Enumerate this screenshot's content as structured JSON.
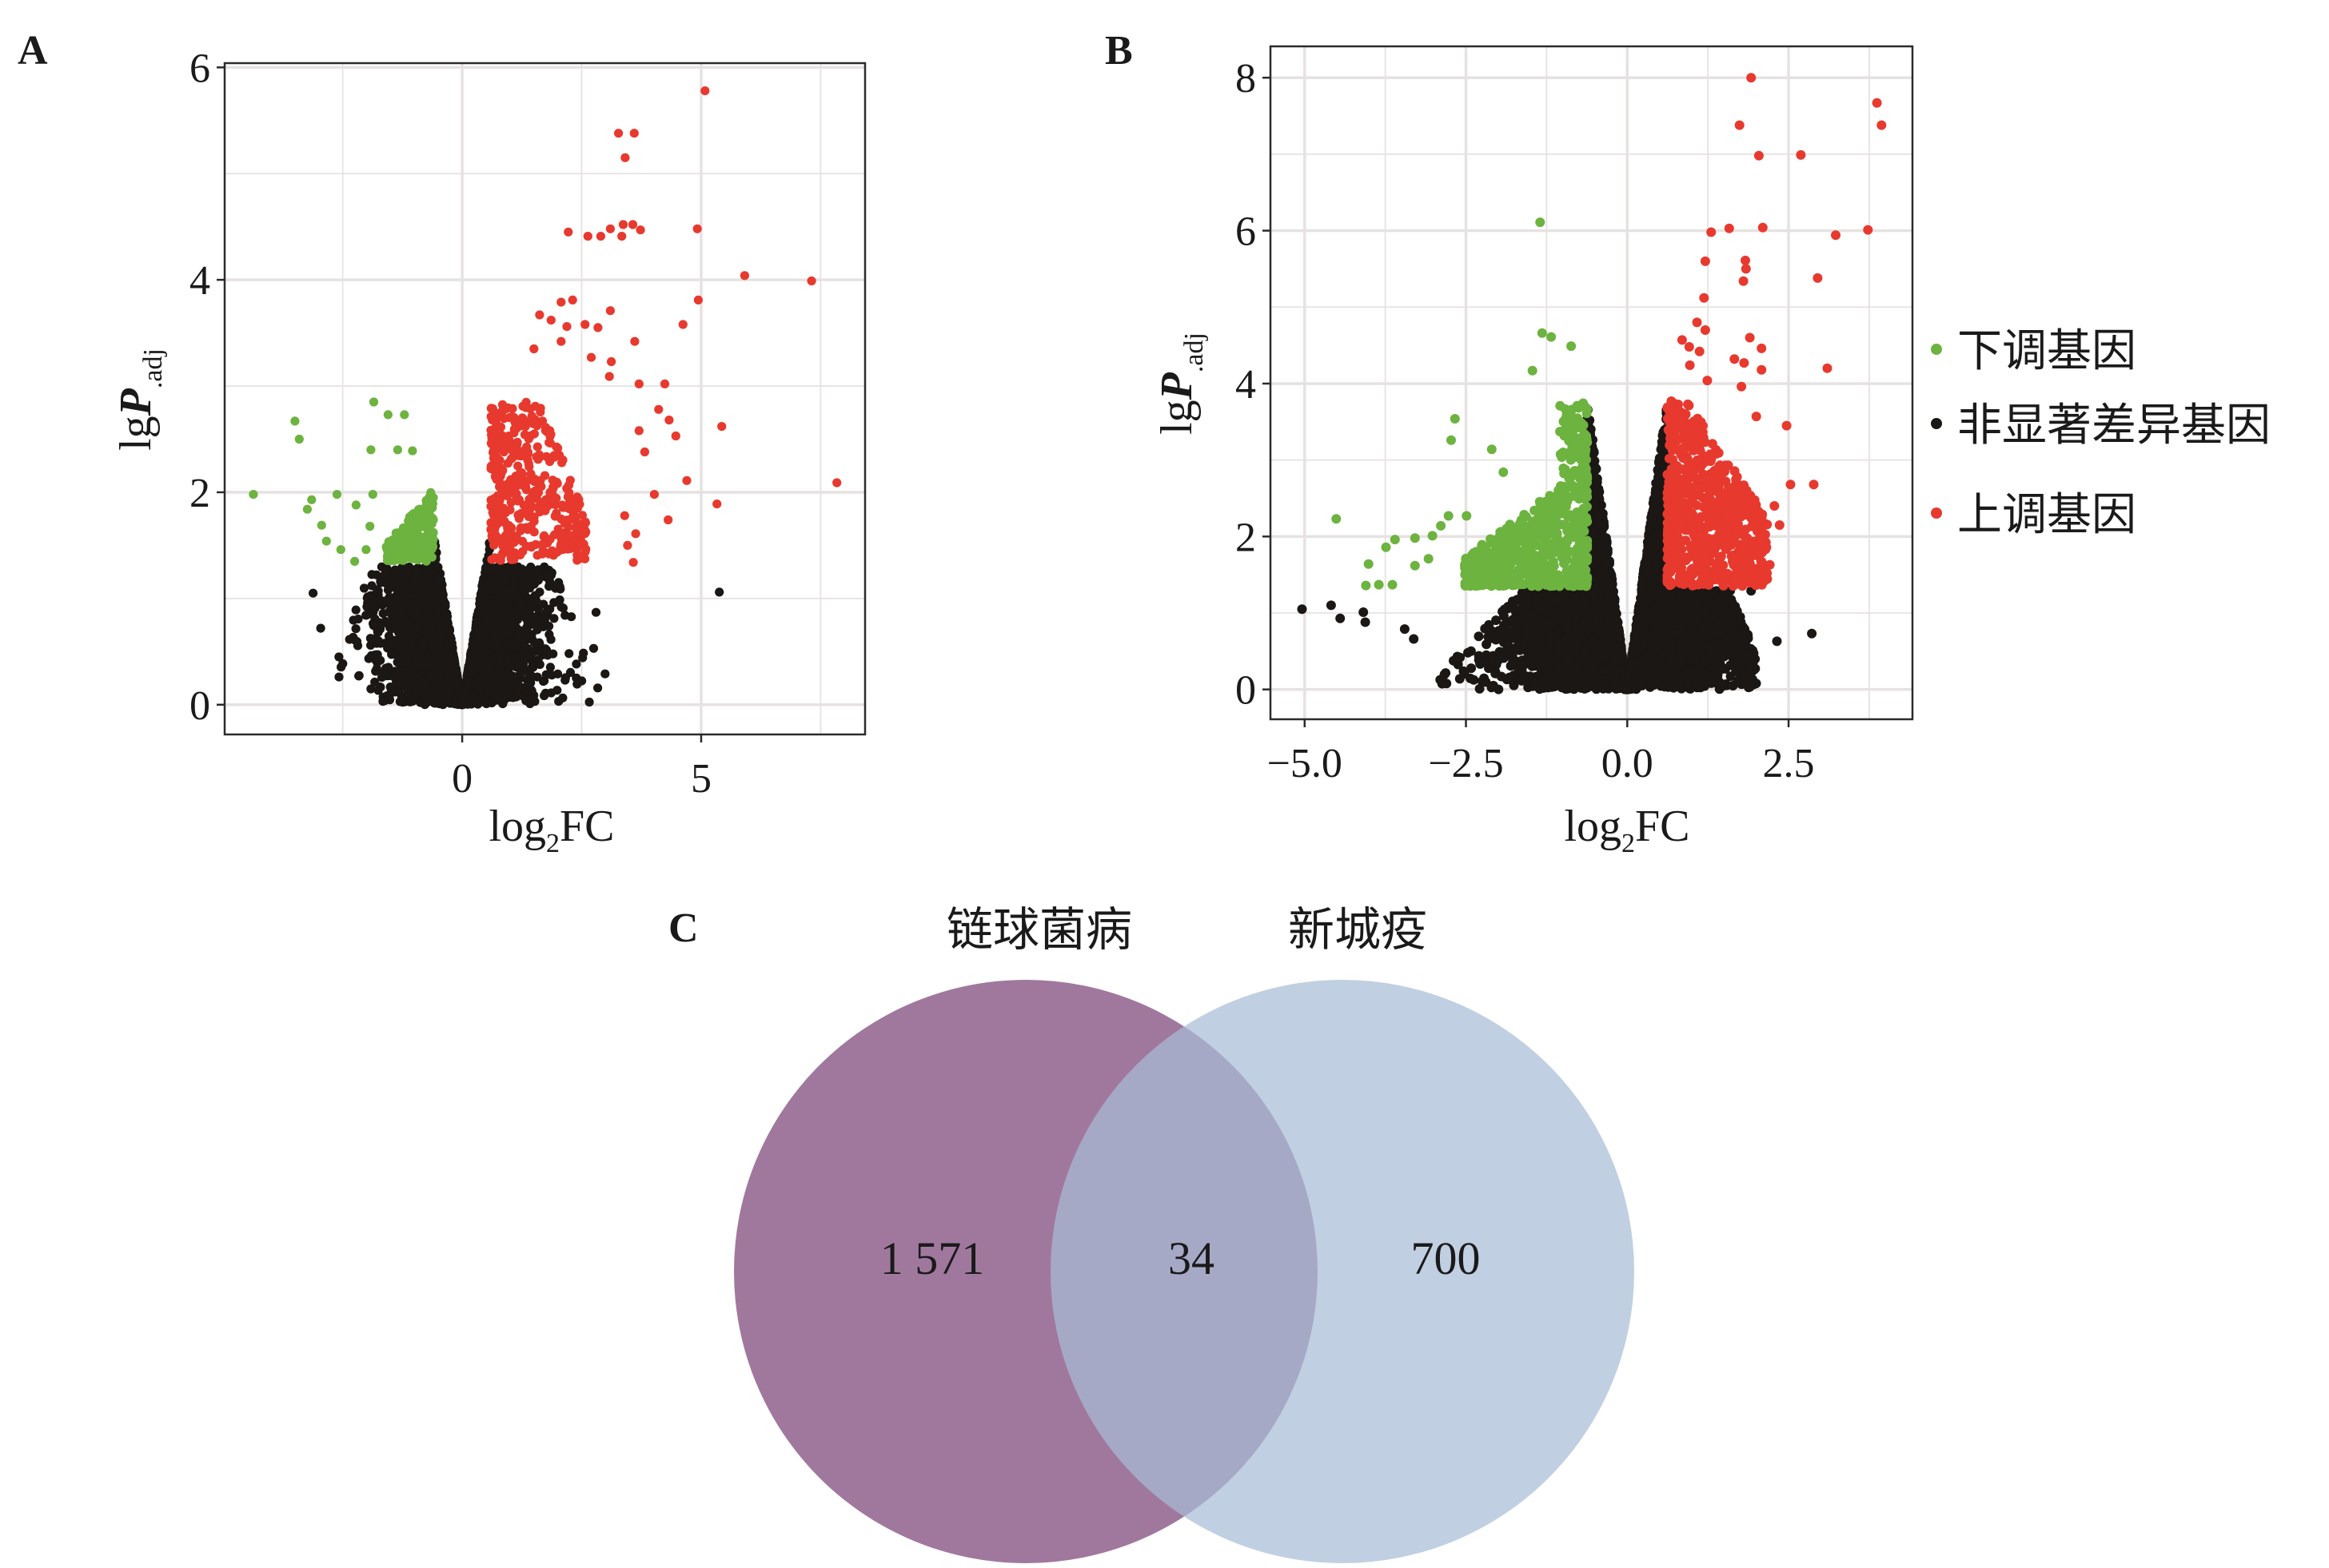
{
  "colors": {
    "down": "#6db33f",
    "ns": "#1a1714",
    "up": "#e8392e",
    "venn_left": "#a0789e",
    "venn_right": "#a7bcd6",
    "grid": "#e6e2e2"
  },
  "chart_data": [
    {
      "type": "scatter",
      "panel_label": "A",
      "xlabel": {
        "main": "log",
        "sub": "2",
        "rest": "FC"
      },
      "ylabel": {
        "main": "lg",
        "italic": "P",
        "sub": ".adj"
      },
      "xlim": [
        -4.97,
        8.43
      ],
      "ylim": [
        -0.28,
        6.04
      ],
      "xticks": [
        {
          "value": 0,
          "label": "0"
        },
        {
          "value": 5,
          "label": "5"
        }
      ],
      "yticks": [
        {
          "value": 0,
          "label": "0"
        },
        {
          "value": 2,
          "label": "2"
        },
        {
          "value": 4,
          "label": "4"
        },
        {
          "value": 6,
          "label": "6"
        }
      ],
      "grid": true,
      "series": {
        "down": [
          [
            -4.37,
            1.98
          ],
          [
            -3.5,
            2.67
          ],
          [
            -3.41,
            2.5
          ],
          [
            -3.15,
            1.93
          ],
          [
            -3.24,
            1.84
          ],
          [
            -2.62,
            1.98
          ],
          [
            -2.94,
            1.69
          ],
          [
            -2.84,
            1.54
          ],
          [
            -2.54,
            1.46
          ],
          [
            -2.25,
            1.35
          ],
          [
            -1.85,
            2.85
          ],
          [
            -1.55,
            2.73
          ],
          [
            -1.21,
            2.73
          ],
          [
            -1.91,
            2.4
          ],
          [
            -1.35,
            2.4
          ],
          [
            -1.04,
            2.39
          ],
          [
            -2.22,
            1.88
          ],
          [
            -1.87,
            1.98
          ],
          [
            -1.93,
            1.68
          ],
          [
            -2.01,
            1.46
          ]
        ],
        "ns": [
          [
            5.38,
            1.06
          ],
          [
            2.99,
            0.29
          ],
          [
            2.75,
            0.53
          ],
          [
            2.8,
            0.87
          ],
          [
            -3.12,
            1.05
          ],
          [
            -2.96,
            0.72
          ],
          [
            -2.58,
            0.45
          ]
        ],
        "up": [
          [
            5.08,
            5.78
          ],
          [
            3.27,
            5.38
          ],
          [
            3.6,
            5.38
          ],
          [
            3.41,
            5.15
          ],
          [
            2.22,
            4.45
          ],
          [
            2.63,
            4.41
          ],
          [
            2.9,
            4.41
          ],
          [
            3.1,
            4.48
          ],
          [
            3.34,
            4.41
          ],
          [
            3.37,
            4.52
          ],
          [
            3.57,
            4.52
          ],
          [
            3.73,
            4.47
          ],
          [
            4.92,
            4.48
          ],
          [
            5.91,
            4.04
          ],
          [
            7.31,
            3.99
          ],
          [
            2.07,
            3.79
          ],
          [
            2.31,
            3.81
          ],
          [
            3.1,
            3.71
          ],
          [
            4.94,
            3.81
          ],
          [
            4.62,
            3.58
          ],
          [
            1.62,
            3.67
          ],
          [
            1.86,
            3.62
          ],
          [
            2.19,
            3.56
          ],
          [
            2.57,
            3.58
          ],
          [
            2.84,
            3.55
          ],
          [
            3.61,
            3.42
          ],
          [
            2.07,
            3.42
          ],
          [
            1.5,
            3.35
          ],
          [
            3.12,
            3.23
          ],
          [
            2.7,
            3.27
          ],
          [
            3.7,
            3.02
          ],
          [
            4.24,
            3.02
          ],
          [
            3.08,
            3.09
          ],
          [
            4.11,
            2.78
          ],
          [
            4.33,
            2.68
          ],
          [
            4.47,
            2.53
          ],
          [
            3.7,
            2.58
          ],
          [
            3.82,
            2.38
          ],
          [
            5.43,
            2.62
          ],
          [
            4.7,
            2.11
          ],
          [
            4.02,
            1.98
          ],
          [
            5.33,
            1.89
          ],
          [
            7.84,
            2.09
          ],
          [
            4.31,
            1.74
          ],
          [
            3.4,
            1.78
          ],
          [
            3.46,
            1.5
          ],
          [
            3.63,
            1.61
          ],
          [
            3.58,
            1.34
          ]
        ]
      }
    },
    {
      "type": "scatter",
      "panel_label": "B",
      "xlabel": {
        "main": "log",
        "sub": "2",
        "rest": "FC"
      },
      "ylabel": {
        "main": "lg",
        "italic": "P",
        "sub": ".adj"
      },
      "xlim": [
        -5.53,
        4.42
      ],
      "ylim": [
        -0.39,
        8.41
      ],
      "xticks": [
        {
          "value": -5,
          "label": "−5.0"
        },
        {
          "value": -2.5,
          "label": "−2.5"
        },
        {
          "value": 0,
          "label": "0.0"
        },
        {
          "value": 2.5,
          "label": "2.5"
        }
      ],
      "yticks": [
        {
          "value": 0,
          "label": "0"
        },
        {
          "value": 2,
          "label": "2"
        },
        {
          "value": 4,
          "label": "4"
        },
        {
          "value": 6,
          "label": "6"
        },
        {
          "value": 8,
          "label": "8"
        }
      ],
      "grid": true,
      "legend": {
        "position": "right",
        "items": [
          {
            "key": "down",
            "label": "下调基因"
          },
          {
            "key": "ns",
            "label": "非显著差异基因"
          },
          {
            "key": "up",
            "label": "上调基因"
          }
        ]
      },
      "series": {
        "down": [
          [
            -1.35,
            6.11
          ],
          [
            -1.32,
            4.66
          ],
          [
            -1.18,
            4.61
          ],
          [
            -0.87,
            4.49
          ],
          [
            -1.47,
            4.17
          ],
          [
            -2.67,
            3.54
          ],
          [
            -2.73,
            3.26
          ],
          [
            -2.1,
            3.14
          ],
          [
            -1.92,
            2.84
          ],
          [
            -4.51,
            2.23
          ],
          [
            -4.01,
            1.64
          ],
          [
            -4.05,
            1.36
          ],
          [
            -3.85,
            1.37
          ],
          [
            -3.64,
            1.37
          ],
          [
            -3.74,
            1.86
          ],
          [
            -3.6,
            1.96
          ],
          [
            -3.29,
            1.98
          ],
          [
            -3.29,
            1.62
          ],
          [
            -3.02,
            2.01
          ],
          [
            -2.77,
            2.27
          ],
          [
            -2.49,
            2.27
          ],
          [
            -2.89,
            2.14
          ],
          [
            -3.08,
            1.71
          ]
        ],
        "ns": [
          [
            -5.04,
            1.05
          ],
          [
            -4.59,
            1.1
          ],
          [
            -4.45,
            0.93
          ],
          [
            -4.09,
            1.01
          ],
          [
            -4.06,
            0.88
          ],
          [
            -3.31,
            0.66
          ],
          [
            -3.45,
            0.79
          ],
          [
            -2.08,
            0.44
          ],
          [
            2.86,
            0.73
          ],
          [
            2.32,
            0.63
          ],
          [
            1.86,
            0.46
          ],
          [
            1.92,
            1.29
          ],
          [
            1.76,
            0.88
          ]
        ],
        "up": [
          [
            1.92,
            8.0
          ],
          [
            3.87,
            7.67
          ],
          [
            3.94,
            7.38
          ],
          [
            1.74,
            7.38
          ],
          [
            2.04,
            6.98
          ],
          [
            2.69,
            6.99
          ],
          [
            1.3,
            5.98
          ],
          [
            1.58,
            6.03
          ],
          [
            2.1,
            6.04
          ],
          [
            3.23,
            5.94
          ],
          [
            3.73,
            6.01
          ],
          [
            1.21,
            5.6
          ],
          [
            1.83,
            5.61
          ],
          [
            1.84,
            5.5
          ],
          [
            1.8,
            5.34
          ],
          [
            2.95,
            5.38
          ],
          [
            1.19,
            5.12
          ],
          [
            1.08,
            4.8
          ],
          [
            1.21,
            4.7
          ],
          [
            0.85,
            4.57
          ],
          [
            1.9,
            4.6
          ],
          [
            2.08,
            4.46
          ],
          [
            0.96,
            4.48
          ],
          [
            1.12,
            4.42
          ],
          [
            1.66,
            4.32
          ],
          [
            1.81,
            4.27
          ],
          [
            2.08,
            4.18
          ],
          [
            3.1,
            4.2
          ],
          [
            0.97,
            4.24
          ],
          [
            1.24,
            4.04
          ],
          [
            1.77,
            3.96
          ],
          [
            2.0,
            3.57
          ],
          [
            2.47,
            3.45
          ],
          [
            2.53,
            2.68
          ],
          [
            2.89,
            2.68
          ],
          [
            2.21,
            1.63
          ],
          [
            2.36,
            2.15
          ],
          [
            2.28,
            2.4
          ],
          [
            2.09,
            1.79
          ]
        ]
      }
    }
  ],
  "venn": {
    "panel_label": "C",
    "left_set": "链球菌病",
    "right_set": "新城疫",
    "left_only": "1 571",
    "intersection": "34",
    "right_only": "700"
  }
}
